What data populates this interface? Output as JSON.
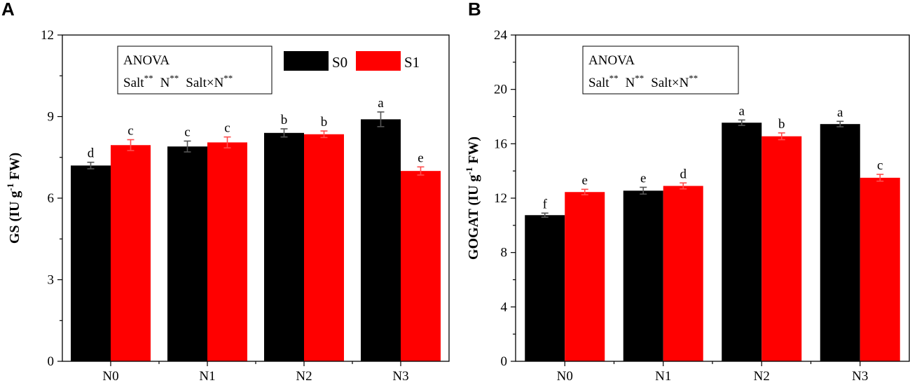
{
  "figure": {
    "legend": {
      "items": [
        {
          "name": "S0",
          "color": "#000000"
        },
        {
          "name": "S1",
          "color": "#ff0000"
        }
      ]
    },
    "anova": {
      "title": "ANOVA",
      "terms": [
        {
          "name": "Salt",
          "sig": "**"
        },
        {
          "name": "N",
          "sig": "**"
        },
        {
          "name": "Salt×N",
          "sig": "**"
        }
      ]
    }
  },
  "chart_data": [
    {
      "panel": "A",
      "type": "bar",
      "categories": [
        "N0",
        "N1",
        "N2",
        "N3"
      ],
      "series": [
        {
          "name": "S0",
          "color": "#000000",
          "values": [
            7.2,
            7.9,
            8.4,
            8.9
          ],
          "errors": [
            0.12,
            0.2,
            0.15,
            0.27
          ],
          "letters": [
            "d",
            "c",
            "b",
            "a"
          ]
        },
        {
          "name": "S1",
          "color": "#ff0000",
          "values": [
            7.95,
            8.05,
            8.35,
            7.0
          ],
          "errors": [
            0.2,
            0.2,
            0.12,
            0.15
          ],
          "letters": [
            "c",
            "c",
            "b",
            "e"
          ]
        }
      ],
      "ylabel": "GS (IU g",
      "ylabel_sup": "-1",
      "ylabel_tail": " FW)",
      "ylim": [
        0,
        12
      ],
      "yticks": [
        "0",
        "3",
        "6",
        "9",
        "12"
      ],
      "yminor_step": 1.5
    },
    {
      "panel": "B",
      "type": "bar",
      "categories": [
        "N0",
        "N1",
        "N2",
        "N3"
      ],
      "series": [
        {
          "name": "S0",
          "color": "#000000",
          "values": [
            10.75,
            12.55,
            17.55,
            17.45
          ],
          "errors": [
            0.15,
            0.25,
            0.2,
            0.2
          ],
          "letters": [
            "f",
            "e",
            "a",
            "a"
          ]
        },
        {
          "name": "S1",
          "color": "#ff0000",
          "values": [
            12.45,
            12.9,
            16.55,
            13.5
          ],
          "errors": [
            0.2,
            0.22,
            0.25,
            0.25
          ],
          "letters": [
            "e",
            "d",
            "b",
            "c"
          ]
        }
      ],
      "ylabel": "GOGAT (IU g",
      "ylabel_sup": "-1",
      "ylabel_tail": " FW)",
      "ylim": [
        0,
        24
      ],
      "yticks": [
        "0",
        "4",
        "8",
        "12",
        "16",
        "20",
        "24"
      ],
      "yminor_step": 2
    }
  ]
}
